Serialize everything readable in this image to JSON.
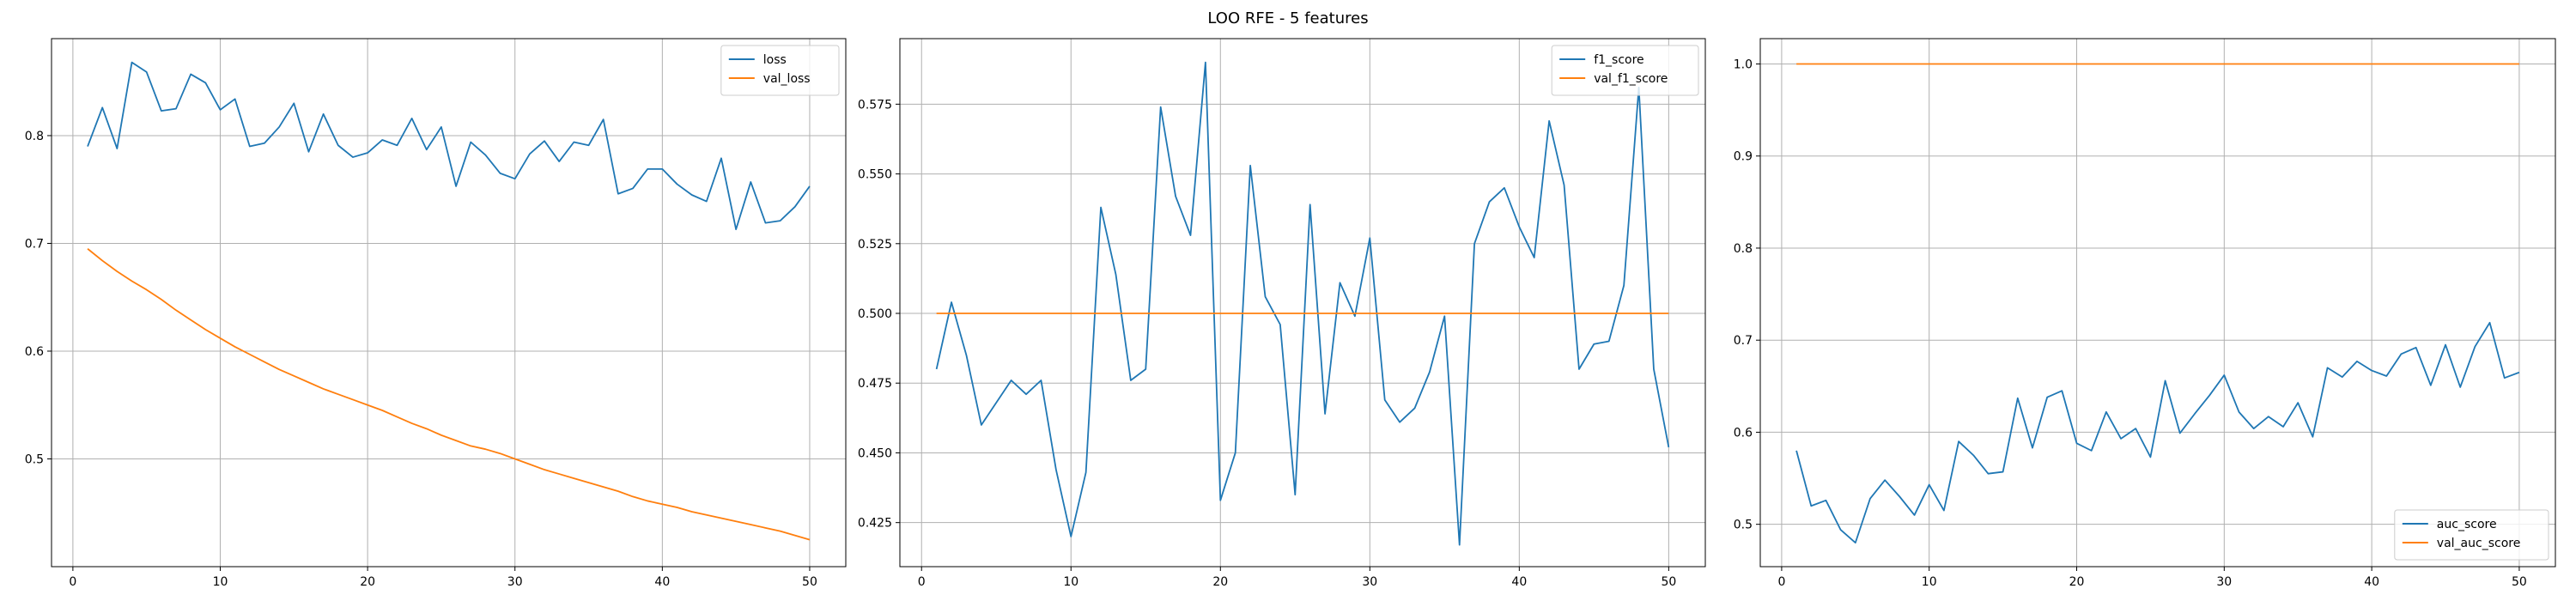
{
  "figure": {
    "suptitle": "LOO RFE - 5 features"
  },
  "chart_data": [
    {
      "type": "line",
      "title": "",
      "xlabel": "",
      "ylabel": "",
      "xlim": [
        -1.45,
        52.45
      ],
      "ylim": [
        0.4,
        0.89
      ],
      "xticks": [
        0,
        10,
        20,
        30,
        40,
        50
      ],
      "yticks": [
        0.5,
        0.6,
        0.7,
        0.8
      ],
      "ytick_labels": [
        "0.5",
        "0.6",
        "0.7",
        "0.8"
      ],
      "grid": true,
      "legend_position": "top-right",
      "series": [
        {
          "name": "loss",
          "color": "#1f77b4",
          "x": [
            1,
            2,
            3,
            4,
            5,
            6,
            7,
            8,
            9,
            10,
            11,
            12,
            13,
            14,
            15,
            16,
            17,
            18,
            19,
            20,
            21,
            22,
            23,
            24,
            25,
            26,
            27,
            28,
            29,
            30,
            31,
            32,
            33,
            34,
            35,
            36,
            37,
            38,
            39,
            40,
            41,
            42,
            43,
            44,
            45,
            46,
            47,
            48,
            49,
            50
          ],
          "values": [
            0.79,
            0.826,
            0.788,
            0.868,
            0.859,
            0.823,
            0.825,
            0.857,
            0.849,
            0.824,
            0.834,
            0.79,
            0.793,
            0.808,
            0.83,
            0.785,
            0.82,
            0.791,
            0.78,
            0.784,
            0.796,
            0.791,
            0.816,
            0.787,
            0.808,
            0.753,
            0.794,
            0.782,
            0.765,
            0.76,
            0.783,
            0.795,
            0.776,
            0.794,
            0.791,
            0.815,
            0.746,
            0.751,
            0.769,
            0.769,
            0.755,
            0.745,
            0.739,
            0.779,
            0.713,
            0.757,
            0.719,
            0.721,
            0.734,
            0.753
          ]
        },
        {
          "name": "val_loss",
          "color": "#ff7f0e",
          "x": [
            1,
            2,
            3,
            4,
            5,
            6,
            7,
            8,
            9,
            10,
            11,
            12,
            13,
            14,
            15,
            16,
            17,
            18,
            19,
            20,
            21,
            22,
            23,
            24,
            25,
            26,
            27,
            28,
            29,
            30,
            31,
            32,
            33,
            34,
            35,
            36,
            37,
            38,
            39,
            40,
            41,
            42,
            43,
            44,
            45,
            46,
            47,
            48,
            49,
            50
          ],
          "values": [
            0.695,
            0.684,
            0.674,
            0.665,
            0.657,
            0.648,
            0.638,
            0.629,
            0.62,
            0.612,
            0.604,
            0.597,
            0.59,
            0.583,
            0.577,
            0.571,
            0.565,
            0.56,
            0.555,
            0.55,
            0.545,
            0.539,
            0.533,
            0.528,
            0.522,
            0.517,
            0.512,
            0.509,
            0.505,
            0.5,
            0.495,
            0.49,
            0.486,
            0.482,
            0.478,
            0.474,
            0.47,
            0.465,
            0.461,
            0.458,
            0.455,
            0.451,
            0.448,
            0.445,
            0.442,
            0.439,
            0.436,
            0.433,
            0.429,
            0.425
          ]
        }
      ]
    },
    {
      "type": "line",
      "title": "",
      "xlabel": "",
      "ylabel": "",
      "xlim": [
        -1.45,
        52.45
      ],
      "ylim": [
        0.4092,
        0.5985
      ],
      "xticks": [
        0,
        10,
        20,
        30,
        40,
        50
      ],
      "yticks": [
        0.425,
        0.45,
        0.475,
        0.5,
        0.525,
        0.55,
        0.575
      ],
      "ytick_labels": [
        "0.425",
        "0.450",
        "0.475",
        "0.500",
        "0.525",
        "0.550",
        "0.575"
      ],
      "grid": true,
      "legend_position": "top-right",
      "series": [
        {
          "name": "f1_score",
          "color": "#1f77b4",
          "x": [
            1,
            2,
            3,
            4,
            5,
            6,
            7,
            8,
            9,
            10,
            11,
            12,
            13,
            14,
            15,
            16,
            17,
            18,
            19,
            20,
            21,
            22,
            23,
            24,
            25,
            26,
            27,
            28,
            29,
            30,
            31,
            32,
            33,
            34,
            35,
            36,
            37,
            38,
            39,
            40,
            41,
            42,
            43,
            44,
            45,
            46,
            47,
            48,
            49,
            50
          ],
          "values": [
            0.48,
            0.504,
            0.485,
            0.46,
            0.468,
            0.476,
            0.471,
            0.476,
            0.444,
            0.42,
            0.443,
            0.538,
            0.514,
            0.476,
            0.48,
            0.574,
            0.542,
            0.528,
            0.59,
            0.433,
            0.45,
            0.553,
            0.506,
            0.496,
            0.435,
            0.539,
            0.464,
            0.511,
            0.499,
            0.527,
            0.469,
            0.461,
            0.466,
            0.479,
            0.499,
            0.417,
            0.525,
            0.54,
            0.545,
            0.531,
            0.52,
            0.569,
            0.546,
            0.48,
            0.489,
            0.49,
            0.51,
            0.581,
            0.48,
            0.452
          ]
        },
        {
          "name": "val_f1_score",
          "color": "#ff7f0e",
          "x": [
            1,
            2,
            3,
            4,
            5,
            6,
            7,
            8,
            9,
            10,
            11,
            12,
            13,
            14,
            15,
            16,
            17,
            18,
            19,
            20,
            21,
            22,
            23,
            24,
            25,
            26,
            27,
            28,
            29,
            30,
            31,
            32,
            33,
            34,
            35,
            36,
            37,
            38,
            39,
            40,
            41,
            42,
            43,
            44,
            45,
            46,
            47,
            48,
            49,
            50
          ],
          "values": [
            0.5,
            0.5,
            0.5,
            0.5,
            0.5,
            0.5,
            0.5,
            0.5,
            0.5,
            0.5,
            0.5,
            0.5,
            0.5,
            0.5,
            0.5,
            0.5,
            0.5,
            0.5,
            0.5,
            0.5,
            0.5,
            0.5,
            0.5,
            0.5,
            0.5,
            0.5,
            0.5,
            0.5,
            0.5,
            0.5,
            0.5,
            0.5,
            0.5,
            0.5,
            0.5,
            0.5,
            0.5,
            0.5,
            0.5,
            0.5,
            0.5,
            0.5,
            0.5,
            0.5,
            0.5,
            0.5,
            0.5,
            0.5,
            0.5,
            0.5
          ]
        }
      ]
    },
    {
      "type": "line",
      "title": "",
      "xlabel": "",
      "ylabel": "",
      "xlim": [
        -1.45,
        52.45
      ],
      "ylim": [
        0.454,
        1.0275
      ],
      "xticks": [
        0,
        10,
        20,
        30,
        40,
        50
      ],
      "yticks": [
        0.5,
        0.6,
        0.7,
        0.8,
        0.9,
        1.0
      ],
      "ytick_labels": [
        "0.5",
        "0.6",
        "0.7",
        "0.8",
        "0.9",
        "1.0"
      ],
      "grid": true,
      "legend_position": "bottom-right",
      "series": [
        {
          "name": "auc_score",
          "color": "#1f77b4",
          "x": [
            1,
            2,
            3,
            4,
            5,
            6,
            7,
            8,
            9,
            10,
            11,
            12,
            13,
            14,
            15,
            16,
            17,
            18,
            19,
            20,
            21,
            22,
            23,
            24,
            25,
            26,
            27,
            28,
            29,
            30,
            31,
            32,
            33,
            34,
            35,
            36,
            37,
            38,
            39,
            40,
            41,
            42,
            43,
            44,
            45,
            46,
            47,
            48,
            49,
            50
          ],
          "values": [
            0.58,
            0.52,
            0.526,
            0.494,
            0.48,
            0.528,
            0.548,
            0.53,
            0.51,
            0.543,
            0.515,
            0.59,
            0.575,
            0.555,
            0.557,
            0.637,
            0.583,
            0.638,
            0.645,
            0.588,
            0.58,
            0.622,
            0.593,
            0.604,
            0.573,
            0.656,
            0.599,
            0.62,
            0.64,
            0.662,
            0.622,
            0.604,
            0.617,
            0.606,
            0.632,
            0.595,
            0.67,
            0.66,
            0.677,
            0.667,
            0.661,
            0.685,
            0.692,
            0.651,
            0.695,
            0.649,
            0.693,
            0.719,
            0.659,
            0.665
          ]
        },
        {
          "name": "val_auc_score",
          "color": "#ff7f0e",
          "x": [
            1,
            2,
            3,
            4,
            5,
            6,
            7,
            8,
            9,
            10,
            11,
            12,
            13,
            14,
            15,
            16,
            17,
            18,
            19,
            20,
            21,
            22,
            23,
            24,
            25,
            26,
            27,
            28,
            29,
            30,
            31,
            32,
            33,
            34,
            35,
            36,
            37,
            38,
            39,
            40,
            41,
            42,
            43,
            44,
            45,
            46,
            47,
            48,
            49,
            50
          ],
          "values": [
            1.0,
            1.0,
            1.0,
            1.0,
            1.0,
            1.0,
            1.0,
            1.0,
            1.0,
            1.0,
            1.0,
            1.0,
            1.0,
            1.0,
            1.0,
            1.0,
            1.0,
            1.0,
            1.0,
            1.0,
            1.0,
            1.0,
            1.0,
            1.0,
            1.0,
            1.0,
            1.0,
            1.0,
            1.0,
            1.0,
            1.0,
            1.0,
            1.0,
            1.0,
            1.0,
            1.0,
            1.0,
            1.0,
            1.0,
            1.0,
            1.0,
            1.0,
            1.0,
            1.0,
            1.0,
            1.0,
            1.0,
            1.0,
            1.0,
            1.0
          ]
        }
      ]
    }
  ]
}
